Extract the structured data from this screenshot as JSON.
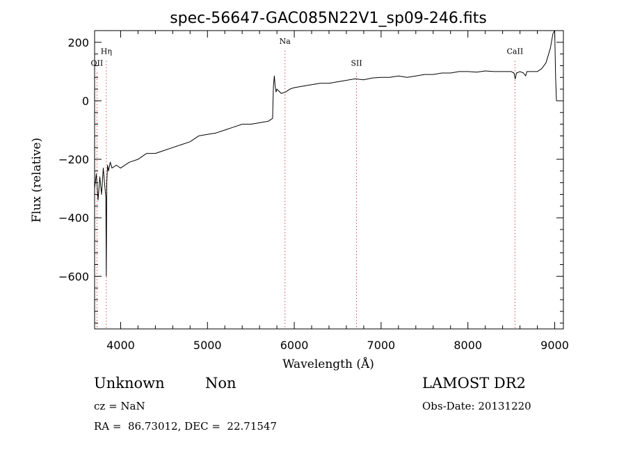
{
  "chart_data": {
    "type": "line",
    "title": "spec-56647-GAC085N22V1_sp09-246.fits",
    "xlabel": "Wavelength (Å)",
    "ylabel": "Flux (relative)",
    "xlim": [
      3700,
      9100
    ],
    "ylim": [
      -780,
      240
    ],
    "xticks": [
      4000,
      5000,
      6000,
      7000,
      8000,
      9000
    ],
    "xtick_labels": [
      "4000",
      "5000",
      "6000",
      "7000",
      "8000",
      "9000"
    ],
    "yticks": [
      200,
      0,
      -200,
      -400,
      -600
    ],
    "ytick_labels": [
      "200",
      "0",
      "−200",
      "−400",
      "−600"
    ],
    "grid": false,
    "spectral_lines": [
      {
        "label": "OII",
        "wavelength": 3727,
        "label_flux": 120
      },
      {
        "label": "Hη",
        "wavelength": 3835,
        "label_flux": 160
      },
      {
        "label": "Na",
        "wavelength": 5893,
        "label_flux": 195
      },
      {
        "label": "SII",
        "wavelength": 6717,
        "label_flux": 120
      },
      {
        "label": "CaII",
        "wavelength": 8542,
        "label_flux": 160
      }
    ],
    "series": [
      {
        "x": [
          3700,
          3720,
          3740,
          3760,
          3780,
          3800,
          3820,
          3830,
          3835,
          3840,
          3850,
          3860,
          3880,
          3900,
          3950,
          4000,
          4100,
          4200,
          4300,
          4400,
          4500,
          4600,
          4700,
          4800,
          4900,
          5000,
          5100,
          5200,
          5300,
          5400,
          5500,
          5600,
          5700,
          5750,
          5760,
          5770,
          5780,
          5790,
          5800,
          5850,
          5900,
          5950,
          6000,
          6100,
          6200,
          6300,
          6400,
          6500,
          6600,
          6700,
          6800,
          6900,
          7000,
          7100,
          7200,
          7300,
          7400,
          7500,
          7600,
          7700,
          7800,
          7900,
          8000,
          8100,
          8200,
          8300,
          8400,
          8500,
          8530,
          8545,
          8560,
          8600,
          8640,
          8665,
          8680,
          8700,
          8800,
          8850,
          8900,
          8950,
          8980,
          9000,
          9010,
          9020
        ],
        "y": [
          -300,
          -250,
          -340,
          -260,
          -320,
          -230,
          -300,
          -330,
          -600,
          -280,
          -220,
          -240,
          -210,
          -230,
          -220,
          -230,
          -210,
          -200,
          -180,
          -180,
          -170,
          -160,
          -150,
          -140,
          -120,
          -115,
          -110,
          -100,
          -90,
          -80,
          -80,
          -75,
          -70,
          -60,
          50,
          85,
          50,
          30,
          40,
          25,
          30,
          40,
          45,
          50,
          55,
          60,
          60,
          65,
          70,
          75,
          72,
          78,
          80,
          80,
          85,
          80,
          85,
          90,
          90,
          95,
          95,
          100,
          100,
          98,
          102,
          100,
          100,
          100,
          95,
          75,
          95,
          100,
          95,
          85,
          100,
          100,
          100,
          110,
          130,
          180,
          230,
          240,
          80,
          0
        ]
      }
    ]
  },
  "info": {
    "class_text": "Unknown",
    "subclass_text": "Non",
    "redshift_text": "cz = NaN",
    "coords_text": "RA =  86.73012, DEC =  22.71547",
    "survey_text": "LAMOST DR2",
    "date_text": "Obs-Date: 20131220"
  }
}
